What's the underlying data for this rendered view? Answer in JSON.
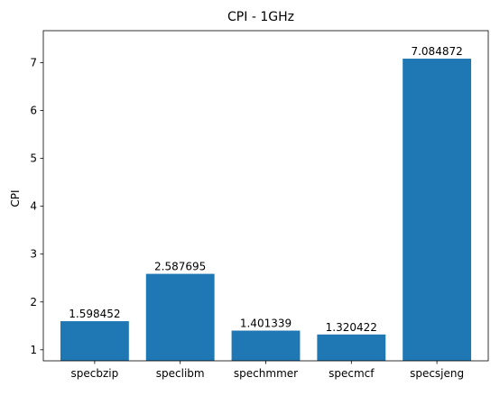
{
  "chart_data": {
    "type": "bar",
    "title": "CPI - 1GHz",
    "xlabel": "",
    "ylabel": "CPI",
    "categories": [
      "specbzip",
      "speclibm",
      "spechmmer",
      "specmcf",
      "specsjeng"
    ],
    "values": [
      1.598452,
      2.587695,
      1.401339,
      1.320422,
      7.084872
    ],
    "value_labels": [
      "1.598452",
      "2.587695",
      "1.401339",
      "1.320422",
      "7.084872"
    ],
    "ylim": [
      0.77,
      7.67
    ],
    "yticks": [
      1,
      2,
      3,
      4,
      5,
      6,
      7
    ],
    "ytick_labels": [
      "1",
      "2",
      "3",
      "4",
      "5",
      "6",
      "7"
    ],
    "bar_color": "#1f77b4",
    "grid": false,
    "legend": "none"
  }
}
